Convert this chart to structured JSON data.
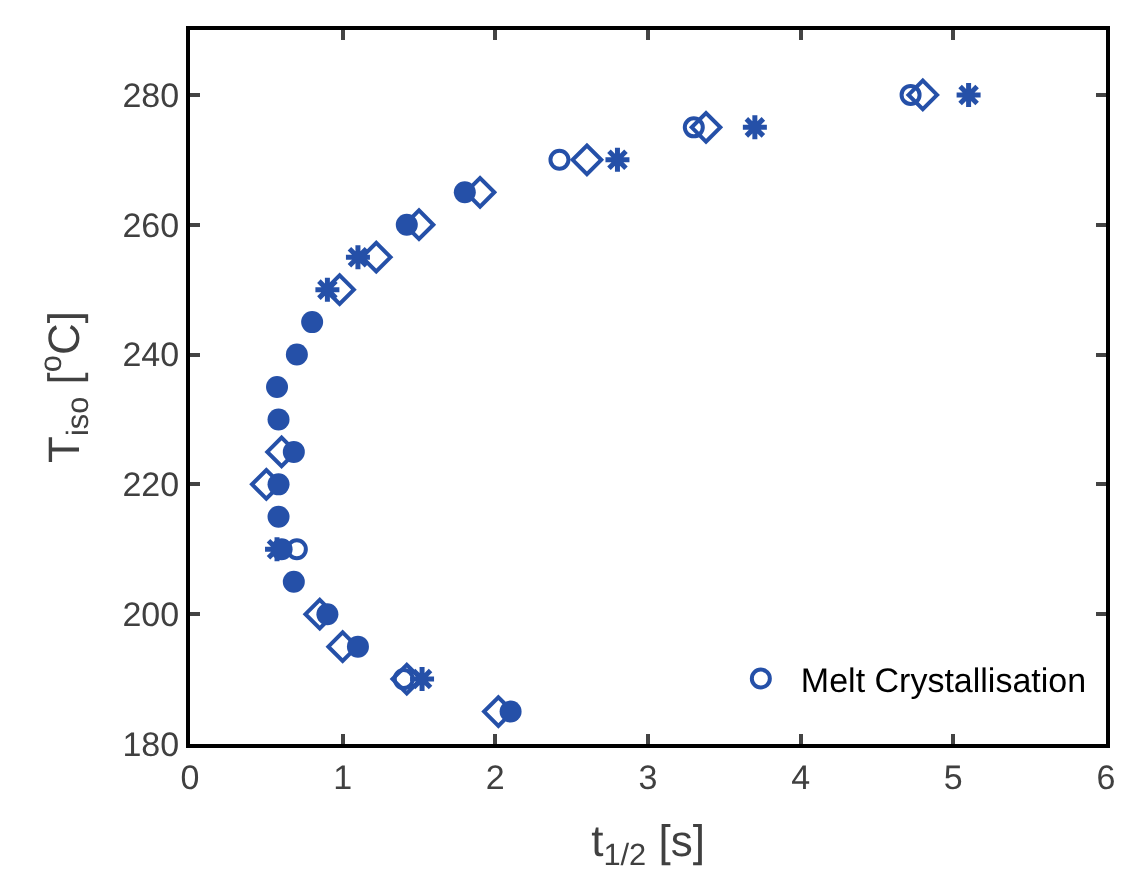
{
  "chart_data": {
    "type": "scatter",
    "xlabel": "t$_{1/2}$ [s]",
    "ylabel": "T$_{iso}$ [$^{o}$C]",
    "xlim": [
      0,
      6
    ],
    "xticks": [
      0,
      1,
      2,
      3,
      4,
      5,
      6
    ],
    "ylim": [
      180,
      290
    ],
    "yticks": [
      180,
      200,
      220,
      240,
      260,
      280
    ],
    "legend": "bottom right",
    "series": [
      {
        "name": "Melt Crystallisation",
        "color": "#2550a8",
        "marker": "circle",
        "x": [
          4.72,
          3.3,
          2.42,
          0.7,
          1.4
        ],
        "values": [
          280,
          275,
          270,
          210,
          190
        ]
      },
      {
        "color": "#2550a8",
        "marker": "diamond",
        "x": [
          4.8,
          3.38,
          2.6,
          1.9,
          1.5,
          1.22,
          0.98,
          0.6,
          0.5,
          0.85,
          1.0,
          1.42,
          2.02
        ],
        "values": [
          280,
          275,
          270,
          265,
          260,
          255,
          250,
          225,
          220,
          200,
          195,
          190,
          185
        ]
      },
      {
        "color": "#2550a8",
        "marker": "cross",
        "x": [
          5.1,
          3.7,
          2.8,
          1.1,
          0.9,
          0.57,
          1.52
        ],
        "values": [
          280,
          275,
          270,
          255,
          250,
          210,
          190
        ]
      },
      {
        "color": "#2550a8",
        "marker": "filled_circle",
        "x": [
          1.8,
          1.42,
          0.8,
          0.7,
          0.57,
          0.58,
          0.68,
          0.58,
          0.58,
          0.6,
          0.68,
          0.9,
          1.1,
          2.1
        ],
        "values": [
          265,
          260,
          245,
          240,
          235,
          230,
          225,
          220,
          215,
          210,
          205,
          200,
          195,
          185
        ]
      }
    ]
  }
}
